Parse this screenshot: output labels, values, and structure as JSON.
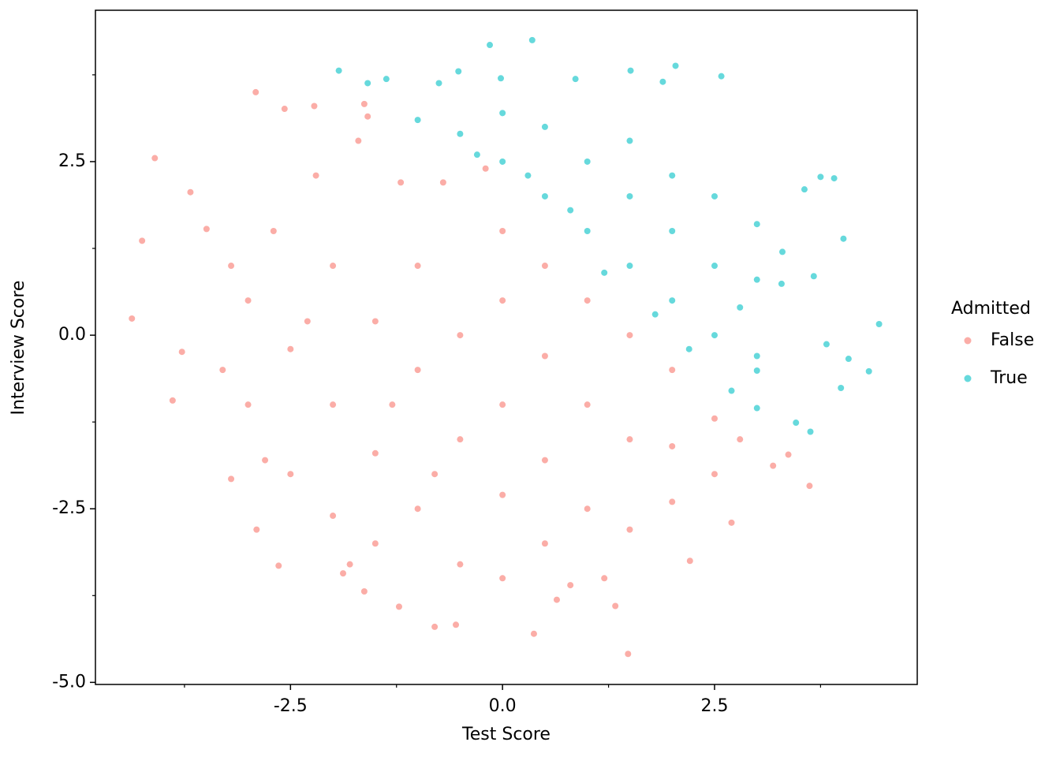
{
  "chart_data": {
    "type": "scatter",
    "x_label": "Test Score",
    "y_label": "Interview Score",
    "legend_title": "Admitted",
    "legend": "right",
    "xlim": [
      -4.8,
      4.89
    ],
    "ylim": [
      -5.03,
      4.68
    ],
    "xticks": [
      -2.5,
      {
        "value": 0,
        "label": "0.0"
      },
      2.5
    ],
    "yticks": [
      {
        "value": -5,
        "label": "-5.0"
      },
      -2.5,
      {
        "value": 0,
        "label": "0.0"
      },
      2.5
    ],
    "xminor": [
      -3.75,
      -1.25,
      1.25,
      3.75
    ],
    "yminor": [
      -3.75,
      -1.25,
      1.25,
      3.75
    ],
    "opacity": 0.6,
    "series": [
      {
        "name": "False",
        "color": "#f8766d",
        "x": [
          -4.37,
          -4.1,
          -4.25,
          -3.68,
          -2.91,
          -2.57,
          -2.22,
          -3.89,
          -2.64,
          -1.22,
          -0.8,
          -0.55,
          0.37,
          1.48,
          1.33,
          2.21,
          2.7,
          3.62,
          3.37,
          -2.9,
          -3.2,
          -3.78,
          -3.49,
          -1.63,
          -1.59,
          0.64,
          -1.63,
          -1.88,
          3.19,
          -3,
          -3,
          -2.7,
          -2.5,
          -2.5,
          -2.2,
          -2,
          -2,
          -2,
          -1.7,
          -1.5,
          -1.5,
          -1.5,
          -1.2,
          -1,
          -1,
          -1,
          -0.7,
          -0.5,
          -0.5,
          -0.5,
          0,
          0,
          0,
          0,
          0,
          0.5,
          0.5,
          0.5,
          0.5,
          1,
          1,
          1,
          1.2,
          1.5,
          1.5,
          1.5,
          2,
          2,
          2,
          2.5,
          2.5,
          2.8,
          -3.3,
          -3.2,
          -2.8,
          -1.8,
          0.8,
          -0.2,
          -2.3,
          -1.3,
          -0.8
        ],
        "values": [
          0.24,
          2.55,
          1.36,
          2.06,
          3.5,
          3.26,
          3.3,
          -0.94,
          -3.32,
          -3.91,
          -4.2,
          -4.17,
          -4.3,
          -4.59,
          -3.9,
          -3.25,
          -2.7,
          -2.17,
          -1.72,
          -2.8,
          -2.07,
          -0.24,
          1.53,
          3.33,
          3.15,
          -3.81,
          -3.69,
          -3.43,
          -1.88,
          0.5,
          -1,
          1.5,
          -0.2,
          -2,
          2.3,
          1,
          -1,
          -2.6,
          2.8,
          0.2,
          -1.7,
          -3,
          2.2,
          1,
          -0.5,
          -2.5,
          2.2,
          0,
          -1.5,
          -3.3,
          1.5,
          0.5,
          -1,
          -2.3,
          -3.5,
          1,
          -0.3,
          -1.8,
          -3,
          0.5,
          -1,
          -2.5,
          -3.5,
          0,
          -1.5,
          -2.8,
          -0.5,
          -1.6,
          -2.4,
          -1.2,
          -2,
          -1.5,
          -0.5,
          1,
          -1.8,
          -3.3,
          -3.6,
          2.4,
          0.2,
          -1,
          -2
        ]
      },
      {
        "name": "True",
        "color": "#00bfc4",
        "x": [
          -0.15,
          0.35,
          -1.93,
          -1.59,
          -1.37,
          -0.75,
          -0.52,
          -0.02,
          1.51,
          2.04,
          2.58,
          1.89,
          0.86,
          3.75,
          3.91,
          4.02,
          4.44,
          4.32,
          3.99,
          4.08,
          3.63,
          3.46,
          3.0,
          3.56,
          3.67,
          3.82,
          3.29,
          3.0,
          -1,
          -0.5,
          0,
          0,
          0.5,
          0.5,
          1,
          1,
          1.5,
          1.5,
          1.5,
          2,
          2,
          2,
          2.5,
          2.5,
          2.5,
          3,
          3,
          3,
          2.7,
          2.2,
          1.2,
          0.8,
          0.3,
          -0.3,
          2.8,
          1.8,
          3.3
        ],
        "values": [
          4.18,
          4.25,
          3.81,
          3.63,
          3.69,
          3.63,
          3.8,
          3.7,
          3.81,
          3.88,
          3.73,
          3.65,
          3.69,
          2.28,
          2.26,
          1.39,
          0.16,
          -0.52,
          -0.76,
          -0.34,
          -1.39,
          -1.26,
          -1.05,
          2.1,
          0.85,
          -0.13,
          0.74,
          -0.51,
          3.1,
          2.9,
          2.5,
          3.2,
          2.0,
          3,
          1.5,
          2.5,
          1,
          2,
          2.8,
          0.5,
          1.5,
          2.3,
          0,
          1,
          2,
          -0.3,
          0.8,
          1.6,
          -0.8,
          -0.2,
          0.9,
          1.8,
          2.3,
          2.6,
          0.4,
          0.3,
          1.2
        ]
      }
    ]
  }
}
